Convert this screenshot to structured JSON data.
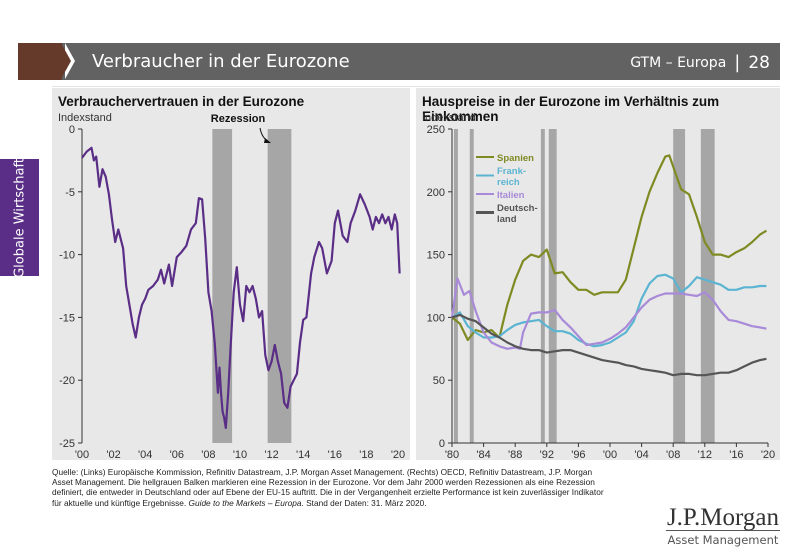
{
  "header": {
    "title": "Verbraucher in der Eurozone",
    "section": "GTM – Europa",
    "separator": "|",
    "page_number": "28",
    "marker_color": "#653a2b",
    "bar_color": "#626262"
  },
  "side_tab": {
    "label": "Globale Wirtschaft",
    "color": "#5a2e86"
  },
  "footnote": {
    "text_main": "Quelle: (Links) Europäische Kommission, Refinitiv Datastream, J.P. Morgan Asset Management. (Rechts) OECD, Refinitiv Datastream, J.P. Morgan Asset Management. Die hellgrauen Balken markieren eine Rezession in der Eurozone. Vor dem Jahr 2000 werden Rezessionen als eine Rezession definiert, die entweder in Deutschland oder auf Ebene der EU-15 auftritt. Die in der Vergangenheit erzielte Performance ist kein zuverlässiger Indikator für aktuelle und künftige Ergebnisse. ",
    "text_italic": "Guide to the Markets – Europa",
    "text_end": ". Stand der Daten: 31. März 2020."
  },
  "logo": {
    "main": "J.P.Morgan",
    "sub": "Asset Management"
  },
  "chart_data": [
    {
      "type": "line",
      "title": "Verbrauchervertrauen in der Eurozone",
      "ylabel": "Indexstand",
      "xlabel": "",
      "annotation": "Rezession",
      "ylim": [
        -25,
        0
      ],
      "xlim": [
        2000,
        2020
      ],
      "yticks": [
        0,
        -5,
        -10,
        -15,
        -20,
        -25
      ],
      "xticks": [
        "'00",
        "'02",
        "'04",
        "'06",
        "'08",
        "'10",
        "'12",
        "'14",
        "'16",
        "'18",
        "'20"
      ],
      "recessions": [
        [
          2008.25,
          2009.5
        ],
        [
          2011.75,
          2013.25
        ]
      ],
      "series": [
        {
          "name": "Verbrauchervertrauen",
          "color": "#5a2e86",
          "x": [
            2000.0,
            2000.3,
            2000.6,
            2000.75,
            2000.9,
            2001.1,
            2001.3,
            2001.5,
            2001.7,
            2001.9,
            2002.1,
            2002.3,
            2002.6,
            2002.8,
            2003.0,
            2003.2,
            2003.4,
            2003.6,
            2003.8,
            2004.0,
            2004.2,
            2004.5,
            2004.8,
            2005.0,
            2005.2,
            2005.5,
            2005.7,
            2006.0,
            2006.3,
            2006.6,
            2006.9,
            2007.2,
            2007.4,
            2007.6,
            2007.8,
            2008.0,
            2008.2,
            2008.4,
            2008.6,
            2008.7,
            2008.8,
            2008.9,
            2009.0,
            2009.1,
            2009.25,
            2009.4,
            2009.6,
            2009.8,
            2010.0,
            2010.2,
            2010.4,
            2010.6,
            2010.8,
            2011.0,
            2011.2,
            2011.4,
            2011.6,
            2011.8,
            2012.0,
            2012.2,
            2012.4,
            2012.6,
            2012.8,
            2013.0,
            2013.2,
            2013.4,
            2013.6,
            2013.8,
            2014.0,
            2014.2,
            2014.5,
            2014.7,
            2015.0,
            2015.2,
            2015.5,
            2015.8,
            2016.0,
            2016.2,
            2016.5,
            2016.8,
            2017.0,
            2017.3,
            2017.6,
            2017.9,
            2018.2,
            2018.4,
            2018.6,
            2018.8,
            2019.0,
            2019.2,
            2019.4,
            2019.6,
            2019.8,
            2019.95,
            2020.1
          ],
          "y": [
            -2.3,
            -1.8,
            -1.5,
            -2.5,
            -2.2,
            -4.6,
            -3.2,
            -3.8,
            -5.2,
            -7.2,
            -9.0,
            -8.0,
            -9.5,
            -12.5,
            -14.0,
            -15.5,
            -16.6,
            -15.0,
            -14.0,
            -13.5,
            -12.8,
            -12.5,
            -12.0,
            -11.2,
            -12.3,
            -10.8,
            -12.5,
            -10.2,
            -9.8,
            -9.3,
            -8.0,
            -7.5,
            -5.5,
            -5.6,
            -8.7,
            -13.0,
            -14.5,
            -17.0,
            -21.0,
            -19.0,
            -21.0,
            -22.5,
            -23.0,
            -23.8,
            -21.0,
            -17.5,
            -13.0,
            -11.0,
            -14.0,
            -15.3,
            -12.5,
            -13.0,
            -12.5,
            -13.5,
            -15.0,
            -14.5,
            -18.0,
            -19.2,
            -18.5,
            -17.2,
            -18.5,
            -19.5,
            -21.8,
            -22.2,
            -20.5,
            -20.0,
            -19.5,
            -17.0,
            -15.2,
            -15.0,
            -11.5,
            -10.2,
            -9.0,
            -9.5,
            -11.5,
            -10.5,
            -7.5,
            -6.5,
            -8.5,
            -9.0,
            -7.5,
            -6.5,
            -5.2,
            -6.0,
            -7.0,
            -8.0,
            -7.0,
            -7.5,
            -6.8,
            -7.5,
            -7.0,
            -8.0,
            -6.8,
            -7.5,
            -11.5
          ]
        }
      ]
    },
    {
      "type": "line",
      "title": "Hauspreise in der Eurozone im Verhältnis zum Einkommen",
      "ylabel": "Indexstand",
      "xlabel": "",
      "ylim": [
        0,
        250
      ],
      "xlim": [
        1980,
        2020
      ],
      "yticks": [
        0,
        50,
        100,
        150,
        200,
        250
      ],
      "xticks": [
        "'80",
        "'84",
        "'88",
        "'92",
        "'96",
        "'00",
        "'04",
        "'08",
        "'12",
        "'16",
        "'20"
      ],
      "legend": "top-left",
      "recessions": [
        [
          1980.25,
          1980.75
        ],
        [
          1982.25,
          1982.75
        ],
        [
          1991.25,
          1991.75
        ],
        [
          1992.25,
          1993.25
        ],
        [
          2008.0,
          2009.5
        ],
        [
          2011.5,
          2013.25
        ]
      ],
      "series": [
        {
          "name": "Spanien",
          "color": "#7f8a23",
          "x": [
            1980,
            1981,
            1982,
            1983,
            1984,
            1985,
            1986,
            1987,
            1988,
            1989,
            1990,
            1991,
            1992,
            1993,
            1994,
            1995,
            1996,
            1997,
            1998,
            1999,
            2000,
            2001,
            2002,
            2003,
            2004,
            2005,
            2006,
            2007,
            2007.5,
            2008,
            2009,
            2010,
            2011,
            2012,
            2013,
            2014,
            2015,
            2016,
            2017,
            2018,
            2019,
            2019.8
          ],
          "y": [
            100,
            95,
            82,
            90,
            88,
            90,
            84,
            110,
            130,
            145,
            150,
            148,
            154,
            135,
            136,
            128,
            122,
            122,
            118,
            120,
            120,
            120,
            130,
            155,
            180,
            200,
            215,
            228,
            229,
            220,
            202,
            198,
            180,
            160,
            150,
            150,
            148,
            152,
            155,
            160,
            166,
            169
          ]
        },
        {
          "name": "Frankreich",
          "color": "#5ab4d2",
          "x": [
            1980,
            1981,
            1982,
            1983,
            1984,
            1985,
            1986,
            1987,
            1988,
            1989,
            1990,
            1991,
            1992,
            1993,
            1994,
            1995,
            1996,
            1997,
            1998,
            1999,
            2000,
            2001,
            2002,
            2003,
            2004,
            2005,
            2006,
            2007,
            2008,
            2009,
            2010,
            2011,
            2012,
            2013,
            2014,
            2015,
            2016,
            2017,
            2018,
            2019,
            2019.8
          ],
          "y": [
            100,
            104,
            93,
            88,
            84,
            84,
            85,
            90,
            94,
            96,
            97,
            98,
            93,
            89,
            89,
            87,
            82,
            79,
            77,
            78,
            80,
            84,
            88,
            97,
            115,
            127,
            133,
            134,
            131,
            120,
            125,
            132,
            130,
            128,
            126,
            122,
            122,
            124,
            124,
            125,
            125
          ]
        },
        {
          "name": "Italien",
          "color": "#a88ad8",
          "x": [
            1980,
            1980.7,
            1981.5,
            1982.2,
            1983,
            1984,
            1985,
            1986,
            1987,
            1988,
            1988.6,
            1989,
            1990,
            1991,
            1992,
            1993,
            1994,
            1995,
            1996,
            1997,
            1998,
            1999,
            2000,
            2001,
            2002,
            2003,
            2004,
            2005,
            2006,
            2007,
            2008,
            2009,
            2010,
            2011,
            2012,
            2013,
            2014,
            2015,
            2016,
            2017,
            2018,
            2019,
            2019.8
          ],
          "y": [
            100,
            131,
            118,
            121,
            105,
            88,
            80,
            77,
            75,
            76,
            75,
            88,
            103,
            104,
            104,
            106,
            98,
            92,
            85,
            78,
            79,
            80,
            83,
            87,
            92,
            100,
            108,
            114,
            117,
            119,
            119,
            119,
            118,
            117,
            120,
            114,
            105,
            98,
            97,
            95,
            93,
            92,
            91
          ]
        },
        {
          "name": "Deutschland",
          "color": "#555555",
          "x": [
            1980,
            1981,
            1982,
            1983,
            1984,
            1985,
            1986,
            1987,
            1988,
            1989,
            1990,
            1991,
            1992,
            1993,
            1994,
            1995,
            1996,
            1997,
            1998,
            1999,
            2000,
            2001,
            2002,
            2003,
            2004,
            2005,
            2006,
            2007,
            2008,
            2009,
            2010,
            2011,
            2012,
            2013,
            2014,
            2015,
            2016,
            2017,
            2018,
            2019,
            2019.8
          ],
          "y": [
            100,
            102,
            99,
            97,
            92,
            87,
            84,
            80,
            77,
            75,
            74,
            74,
            72,
            73,
            74,
            74,
            72,
            70,
            68,
            66,
            65,
            64,
            62,
            61,
            59,
            58,
            57,
            56,
            54,
            55,
            55,
            54,
            54,
            55,
            56,
            56,
            58,
            61,
            64,
            66,
            67
          ]
        }
      ],
      "legend_labels": [
        {
          "name": "Spanien",
          "lines": [
            "Spanien"
          ]
        },
        {
          "name": "Frankreich",
          "lines": [
            "Frank-",
            "reich"
          ]
        },
        {
          "name": "Italien",
          "lines": [
            "Italien"
          ]
        },
        {
          "name": "Deutschland",
          "lines": [
            "Deutsch-",
            "land"
          ]
        }
      ]
    }
  ]
}
